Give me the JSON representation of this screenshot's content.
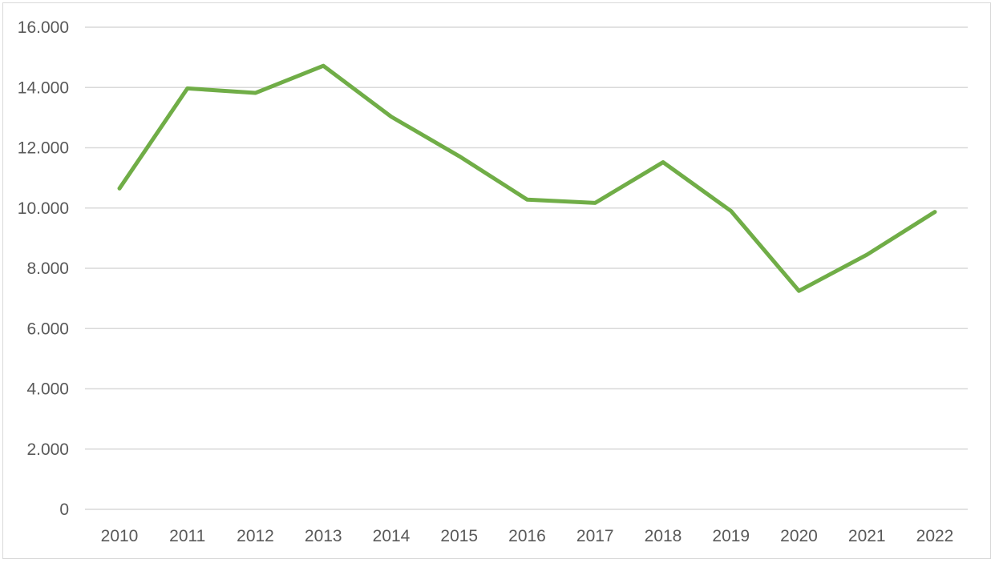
{
  "chart_data": {
    "type": "line",
    "title": "",
    "xlabel": "",
    "ylabel": "",
    "categories": [
      "2010",
      "2011",
      "2012",
      "2013",
      "2014",
      "2015",
      "2016",
      "2017",
      "2018",
      "2019",
      "2020",
      "2021",
      "2022"
    ],
    "series": [
      {
        "values": [
          10650,
          13970,
          13820,
          14720,
          13030,
          11720,
          10280,
          10170,
          11520,
          9900,
          7250,
          8450,
          9870
        ],
        "color": "#70ad47"
      }
    ],
    "ylim": [
      0,
      16000
    ],
    "yticks": [
      0,
      2000,
      4000,
      6000,
      8000,
      10000,
      12000,
      14000,
      16000
    ],
    "ytick_labels": [
      "0",
      "2.000",
      "4.000",
      "6.000",
      "8.000",
      "10.000",
      "12.000",
      "14.000",
      "16.000"
    ],
    "grid": true,
    "legend": "none"
  }
}
